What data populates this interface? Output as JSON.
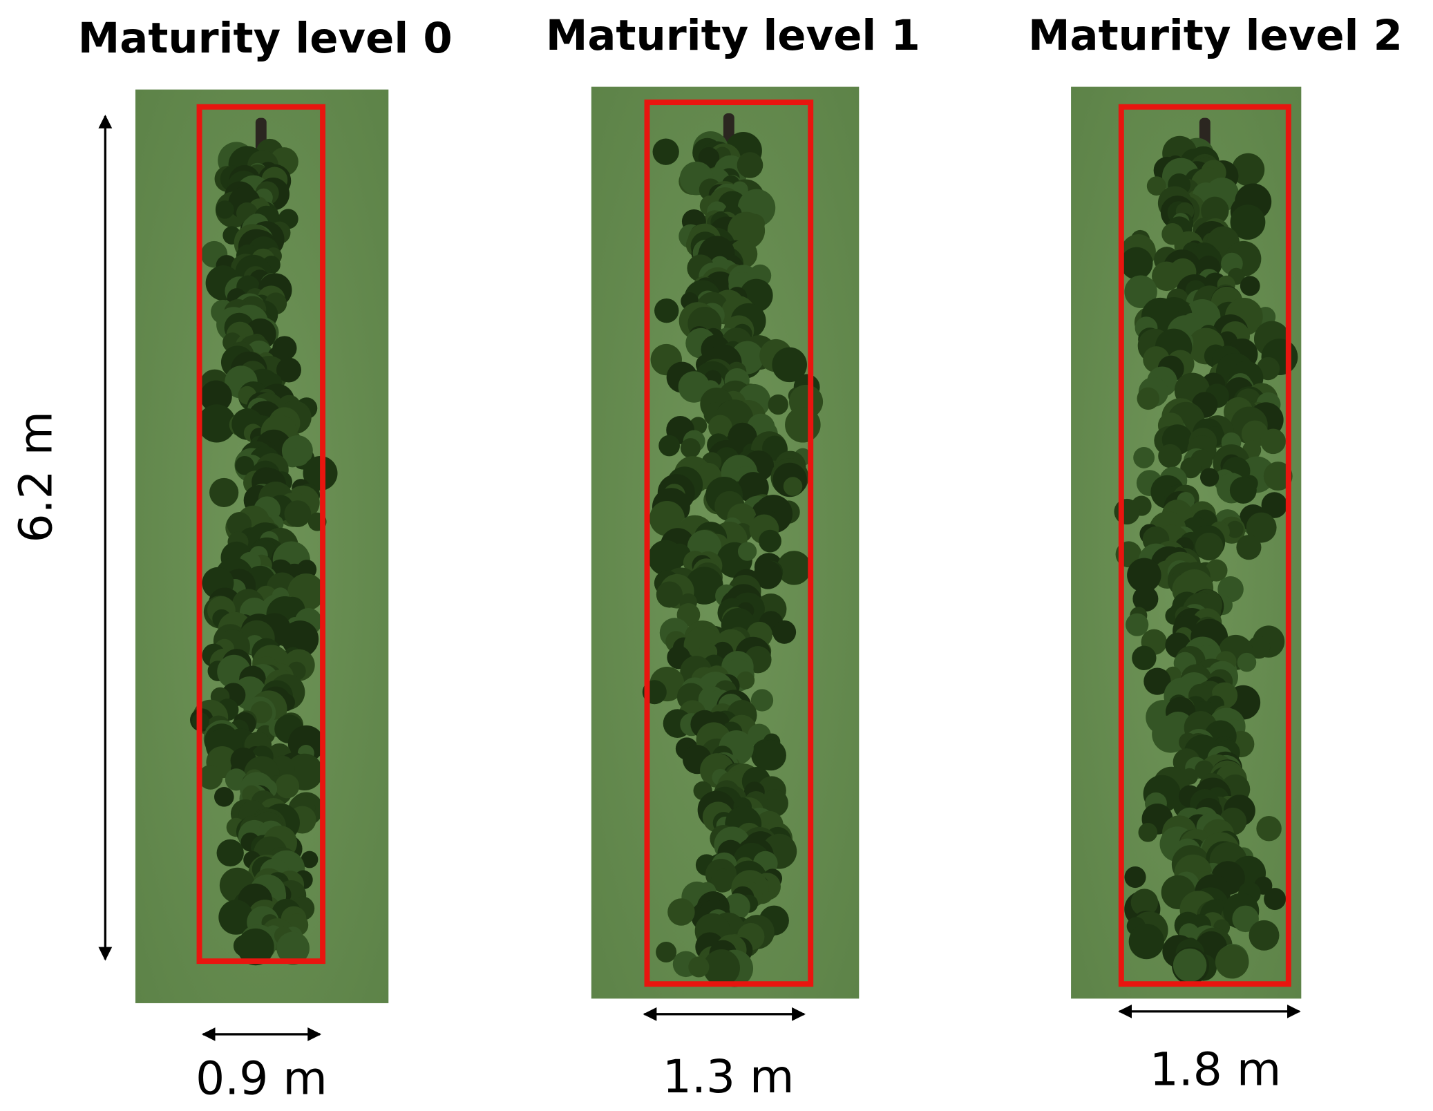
{
  "panels": [
    {
      "title": "Maturity level 0",
      "width_label": "0.9 m"
    },
    {
      "title": "Maturity level 1",
      "width_label": "1.3 m"
    },
    {
      "title": "Maturity level 2",
      "width_label": "1.8 m"
    }
  ],
  "height_label": "6.2 m"
}
